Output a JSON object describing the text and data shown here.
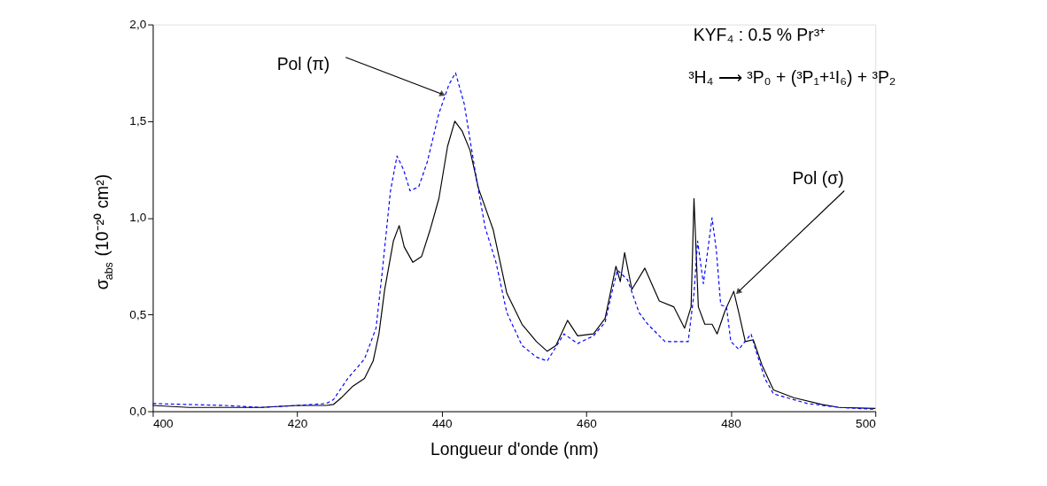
{
  "chart_data": {
    "type": "line",
    "xlabel": "Longueur d'onde (nm)",
    "ylabel": "σ$_{abs}$ (10⁻²⁰ cm²)",
    "xlim": [
      400,
      500
    ],
    "xticks": [
      400,
      420,
      440,
      460,
      480,
      500
    ],
    "ylim": [
      0,
      2.0
    ],
    "yticks": [
      {
        "value": 0,
        "label": "0,0"
      },
      {
        "value": 0.5,
        "label": "0,5"
      },
      {
        "value": 1.0,
        "label": "1,0"
      },
      {
        "value": 1.5,
        "label": "1,5"
      },
      {
        "value": 2.0,
        "label": "2,0"
      }
    ],
    "grid": false,
    "marker": "none",
    "annotations": [
      "KYF₄ : 0.5 % Pr³⁺",
      "³H₄ ⟶ ³P₀ + (³P₁+¹I₆) + ³P₂",
      {
        "text": "Pol (π)",
        "x": 440,
        "y": 1.64
      },
      {
        "text": "Pol (σ)",
        "x": 481.1,
        "y": 0.62
      }
    ],
    "series": [
      {
        "color": "#000000",
        "line_style": "solid",
        "x": [
          400,
          405,
          410,
          415,
          420,
          424,
          425,
          426.1,
          427.7,
          429.3,
          430.5,
          431.3,
          432.1,
          433.3,
          434.1,
          434.8,
          436,
          437.2,
          438.4,
          439.6,
          440.8,
          441.8,
          442.8,
          443.9,
          445.1,
          447.1,
          449,
          451.1,
          453.1,
          454.6,
          455.8,
          457.4,
          458.8,
          461,
          462.6,
          464.1,
          464.7,
          465.3,
          466.3,
          468.1,
          470.1,
          472.1,
          473.6,
          474.5,
          474.9,
          475.5,
          476.4,
          477.4,
          478.1,
          479.2,
          480.4,
          481.1,
          482,
          483.1,
          484.3,
          485.9,
          488.7,
          492.6,
          495,
          500
        ],
        "values": [
          0.03,
          0.02,
          0.02,
          0.02,
          0.03,
          0.03,
          0.035,
          0.07,
          0.13,
          0.17,
          0.26,
          0.4,
          0.63,
          0.88,
          0.96,
          0.85,
          0.77,
          0.8,
          0.94,
          1.1,
          1.37,
          1.5,
          1.45,
          1.35,
          1.15,
          0.94,
          0.61,
          0.45,
          0.36,
          0.31,
          0.34,
          0.47,
          0.39,
          0.4,
          0.48,
          0.75,
          0.67,
          0.82,
          0.63,
          0.74,
          0.57,
          0.54,
          0.43,
          0.54,
          1.1,
          0.54,
          0.45,
          0.45,
          0.4,
          0.52,
          0.62,
          0.51,
          0.36,
          0.37,
          0.24,
          0.11,
          0.07,
          0.035,
          0.02,
          0.015
        ]
      },
      {
        "color": "#0000ff",
        "line_style": "dashed",
        "x": [
          400,
          405,
          410,
          415,
          420,
          424,
          425,
          427,
          429.3,
          430.9,
          431.7,
          432.9,
          433.8,
          434.7,
          435.6,
          436.8,
          438,
          439.6,
          441,
          441.9,
          443.1,
          444.8,
          446,
          447.5,
          449,
          451.1,
          453.1,
          454.6,
          456.9,
          458.8,
          461,
          462.6,
          463.7,
          464.3,
          465.7,
          467.3,
          468.5,
          470.9,
          472.9,
          474.1,
          474.9,
          475.4,
          476.2,
          477.4,
          478,
          478.6,
          479.4,
          480,
          481.1,
          482.8,
          483.5,
          484.7,
          485.9,
          490.6,
          495,
          500
        ],
        "values": [
          0.04,
          0.035,
          0.03,
          0.02,
          0.03,
          0.04,
          0.06,
          0.17,
          0.27,
          0.43,
          0.7,
          1.14,
          1.32,
          1.25,
          1.14,
          1.16,
          1.29,
          1.54,
          1.69,
          1.75,
          1.59,
          1.2,
          0.95,
          0.77,
          0.51,
          0.34,
          0.28,
          0.26,
          0.4,
          0.35,
          0.39,
          0.46,
          0.64,
          0.73,
          0.68,
          0.51,
          0.45,
          0.36,
          0.36,
          0.36,
          0.61,
          0.88,
          0.66,
          1.0,
          0.83,
          0.55,
          0.54,
          0.36,
          0.32,
          0.4,
          0.31,
          0.17,
          0.09,
          0.04,
          0.02,
          0.01
        ]
      }
    ]
  }
}
